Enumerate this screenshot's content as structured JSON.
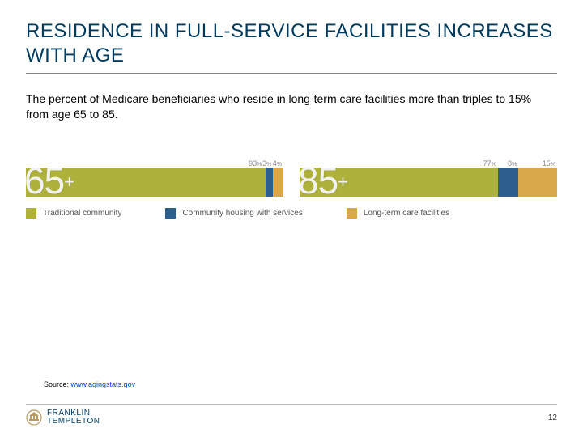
{
  "title": "RESIDENCE IN FULL-SERVICE FACILITIES INCREASES WITH AGE",
  "body": "The percent of Medicare beneficiaries who reside in long-term care facilities more than triples to 15% from age 65 to 85.",
  "chart": {
    "groups": [
      {
        "age_label": "65",
        "age_suffix": "+",
        "segments": [
          {
            "value": 93,
            "label_display": "93%",
            "color": "#aeb23b",
            "show_label_color": "#888888"
          },
          {
            "value": 3,
            "label_display": "3%",
            "color": "#2c5f8d",
            "show_label_color": "#888888"
          },
          {
            "value": 4,
            "label_display": "4%",
            "color": "#d8a84a",
            "show_label_color": "#888888"
          }
        ]
      },
      {
        "age_label": "85",
        "age_suffix": "+",
        "segments": [
          {
            "value": 77,
            "label_display": "77%",
            "color": "#aeb23b",
            "show_label_color": "#888888"
          },
          {
            "value": 8,
            "label_display": "8%",
            "color": "#2c5f8d",
            "show_label_color": "#888888"
          },
          {
            "value": 15,
            "label_display": "15%",
            "color": "#d8a84a",
            "show_label_color": "#888888"
          }
        ]
      }
    ],
    "legend": [
      {
        "color": "#aeb23b",
        "label": "Traditional community"
      },
      {
        "color": "#2c5f8d",
        "label": "Community housing with services"
      },
      {
        "color": "#d8a84a",
        "label": "Long-term care facilities"
      }
    ]
  },
  "source_label": "Source: ",
  "source_link_text": "www.agingstats.gov",
  "logo_text": "FRANKLIN\nTEMPLETON",
  "page_number": "12"
}
